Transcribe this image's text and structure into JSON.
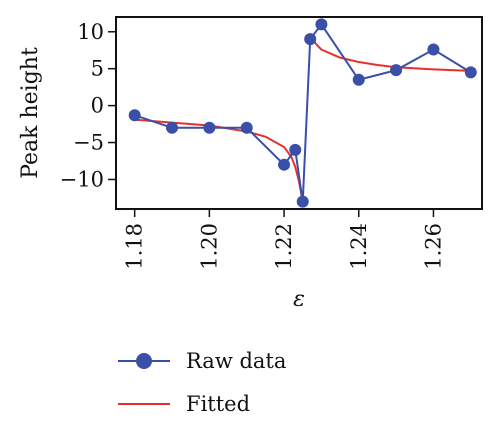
{
  "chart_data": {
    "type": "line",
    "xlabel": "ε",
    "ylabel": "Peak height",
    "xlim": [
      1.175,
      1.273
    ],
    "ylim": [
      -14,
      12
    ],
    "x_ticks": [
      1.18,
      1.2,
      1.22,
      1.24,
      1.26
    ],
    "x_tick_labels": [
      "1.18",
      "1.20",
      "1.22",
      "1.24",
      "1.26"
    ],
    "y_ticks": [
      10,
      5,
      0,
      -5,
      -10
    ],
    "y_tick_labels": [
      "10",
      "5",
      "0",
      "−5",
      "−10"
    ],
    "grid": false,
    "legend_position": "bottom",
    "series": [
      {
        "name": "Raw data",
        "color": "#3a4fa8",
        "marker": "circle",
        "x": [
          1.18,
          1.19,
          1.2,
          1.21,
          1.22,
          1.223,
          1.225,
          1.227,
          1.23,
          1.24,
          1.25,
          1.26,
          1.27
        ],
        "y": [
          -1.3,
          -3.0,
          -3.0,
          -3.0,
          -8.0,
          -6.0,
          -13.0,
          9.0,
          11.0,
          3.5,
          4.8,
          7.6,
          4.5
        ]
      },
      {
        "name": "Fitted",
        "color": "#e8302a",
        "marker": "none",
        "segments": [
          {
            "x": [
              1.18,
              1.19,
              1.2,
              1.21,
              1.215,
              1.22,
              1.222,
              1.223,
              1.224,
              1.225
            ],
            "y": [
              -1.9,
              -2.3,
              -2.7,
              -3.5,
              -4.2,
              -5.6,
              -7.0,
              -8.3,
              -10.3,
              -13.0
            ]
          },
          {
            "x": [
              1.227,
              1.229,
              1.23,
              1.235,
              1.24,
              1.245,
              1.25,
              1.26,
              1.27
            ],
            "y": [
              9.3,
              8.1,
              7.6,
              6.5,
              5.9,
              5.5,
              5.2,
              4.9,
              4.7
            ]
          }
        ]
      }
    ]
  }
}
